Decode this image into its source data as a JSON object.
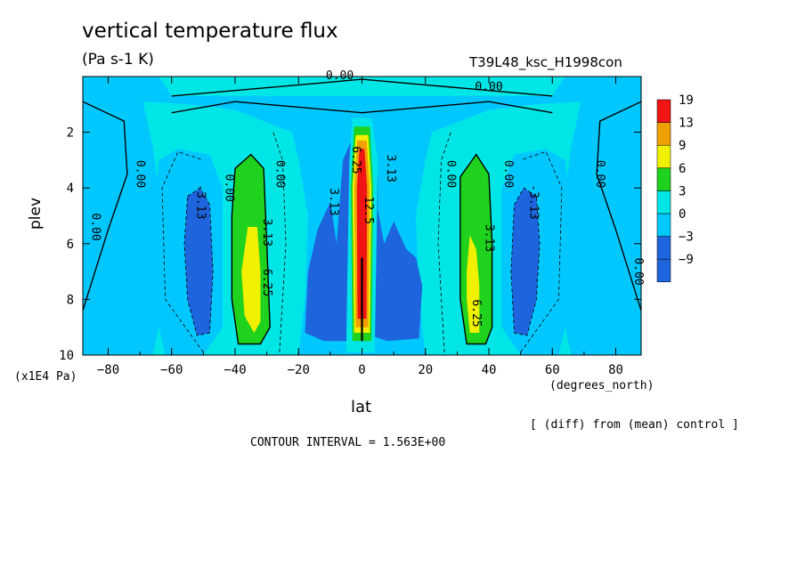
{
  "title": "vertical temperature flux",
  "units": "(Pa s-1 K)",
  "run_name": "T39L48_ksc_H1998con",
  "note": "[ (diff) from (mean) control ]",
  "contour_interval": "CONTOUR INTERVAL = 1.563E+00",
  "colors": {
    "lt_minus9": "#1e64dc",
    "m9_m3": "#1e64dc",
    "m3_0": "#00c8ff",
    "0_3": "#00e6e6",
    "3_6": "#1ed21e",
    "6_9": "#f0f000",
    "9_13": "#f0a000",
    "13_19": "#f01414"
  },
  "chart_data": {
    "type": "heatmap",
    "subtype": "filled-contour",
    "xlabel": "lat",
    "x_unit": "(degrees_north)",
    "ylabel": "plev",
    "y_unit": "(x1E4 Pa)",
    "xlim": [
      -88,
      88
    ],
    "ylim": [
      0,
      10
    ],
    "y_inverted": true,
    "x_ticks": [
      -80,
      -60,
      -40,
      -20,
      0,
      20,
      40,
      60,
      80
    ],
    "y_ticks": [
      2,
      4,
      6,
      8,
      10
    ],
    "colorbar": {
      "levels": [
        -9,
        -3,
        0,
        3,
        6,
        9,
        13,
        19
      ],
      "colors": [
        "#1e64dc",
        "#1e64dc",
        "#00c8ff",
        "#00e6e6",
        "#1ed21e",
        "#f0f000",
        "#f0a000",
        "#f01414"
      ]
    },
    "contour_labels": [
      {
        "text": "0.00",
        "lat": -7,
        "plev": 0.1
      },
      {
        "text": "0.00",
        "lat": 40,
        "plev": 0.5
      },
      {
        "text": "0.00",
        "lat": -85,
        "plev": 5.4
      },
      {
        "text": "0.00",
        "lat": -71,
        "plev": 3.5
      },
      {
        "text": "0.00",
        "lat": -43,
        "plev": 4.0
      },
      {
        "text": "0.00",
        "lat": -27,
        "plev": 3.5
      },
      {
        "text": "0.00",
        "lat": 27,
        "plev": 3.5
      },
      {
        "text": "0.00",
        "lat": 45,
        "plev": 3.5
      },
      {
        "text": "0.00",
        "lat": 74,
        "plev": 3.5
      },
      {
        "text": "0.00",
        "lat": 86,
        "plev": 7.0
      },
      {
        "text": "-3.13",
        "lat": -52,
        "plev": 4.5
      },
      {
        "text": "-3.13",
        "lat": 53,
        "plev": 4.5
      },
      {
        "text": "3.13",
        "lat": -10,
        "plev": 4.5
      },
      {
        "text": "3.13",
        "lat": 8,
        "plev": 3.3
      },
      {
        "text": "3.13",
        "lat": -31,
        "plev": 5.6
      },
      {
        "text": "3.13",
        "lat": 39,
        "plev": 5.8
      },
      {
        "text": "6.25",
        "lat": -31,
        "plev": 7.4
      },
      {
        "text": "6.25",
        "lat": 35,
        "plev": 8.5
      },
      {
        "text": "6.25",
        "lat": -3,
        "plev": 3.0
      },
      {
        "text": "12.5",
        "lat": 1,
        "plev": 4.8
      }
    ]
  }
}
